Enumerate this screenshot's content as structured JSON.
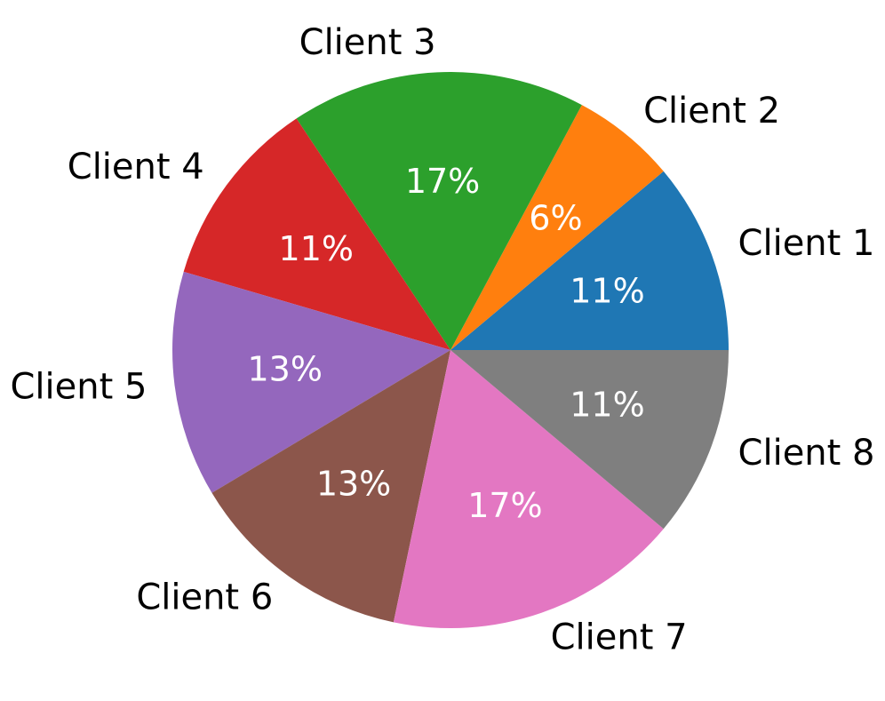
{
  "chart_data": {
    "type": "pie",
    "categories": [
      "Client 1",
      "Client 2",
      "Client 3",
      "Client 4",
      "Client 5",
      "Client 6",
      "Client 7",
      "Client 8"
    ],
    "values": [
      11,
      6,
      17,
      11,
      13,
      13,
      17,
      11
    ],
    "value_labels": [
      "11%",
      "6%",
      "17%",
      "11%",
      "13%",
      "13%",
      "17%",
      "11%"
    ],
    "colors": [
      "#1f77b4",
      "#ff7f0e",
      "#2ca02c",
      "#d62728",
      "#9467bd",
      "#8c564b",
      "#e377c2",
      "#7f7f7f"
    ]
  }
}
